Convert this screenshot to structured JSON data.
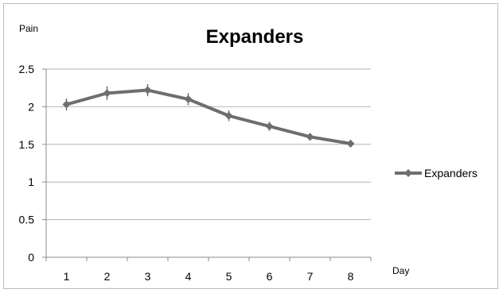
{
  "chart_data": {
    "type": "line",
    "title": "Expanders",
    "xlabel": "Day",
    "ylabel": "Pain",
    "categories": [
      "1",
      "2",
      "3",
      "4",
      "5",
      "6",
      "7",
      "8"
    ],
    "series": [
      {
        "name": "Expanders",
        "values": [
          2.03,
          2.18,
          2.22,
          2.1,
          1.88,
          1.74,
          1.6,
          1.51
        ],
        "error": [
          0.08,
          0.09,
          0.08,
          0.08,
          0.07,
          0.06,
          0.05,
          0.05
        ],
        "color": "#6e6e6e"
      }
    ],
    "ylim": [
      0,
      2.5
    ],
    "yticks": [
      "0",
      "0.5",
      "1",
      "1.5",
      "2",
      "2.5"
    ],
    "grid": true,
    "legend": "right"
  }
}
